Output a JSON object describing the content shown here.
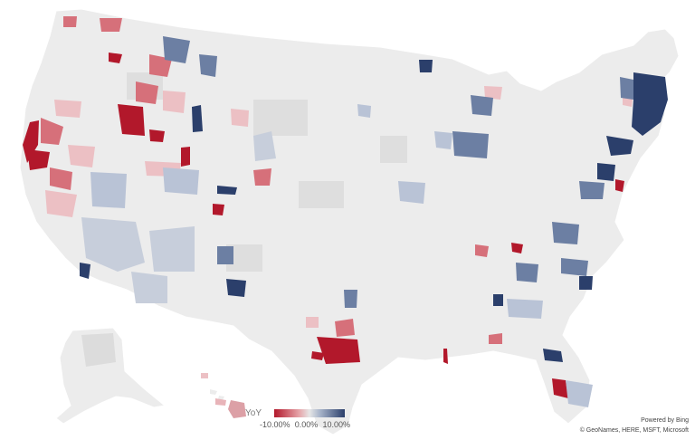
{
  "legend": {
    "title": "YoY",
    "min_label": "-10.00%",
    "mid_label": "0.00%",
    "max_label": "10.00%",
    "colors": {
      "negative": "#b2182b",
      "neutral": "#e6e6e6",
      "positive": "#2b3f6b"
    }
  },
  "attribution": {
    "powered_by": "Powered by Bing",
    "copyright": "© GeoNames, HERE, MSFT, Microsoft"
  },
  "map_colors": {
    "land": "#ececec",
    "land_light": "#f2f2f2",
    "border": "#ffffff",
    "strong_red": "#b2182b",
    "mid_red": "#d6707a",
    "light_red": "#ecc0c4",
    "strong_blue": "#2b3f6b",
    "mid_blue": "#6c7fa3",
    "light_blue": "#b9c3d6",
    "gray": "#d4d4d4"
  }
}
